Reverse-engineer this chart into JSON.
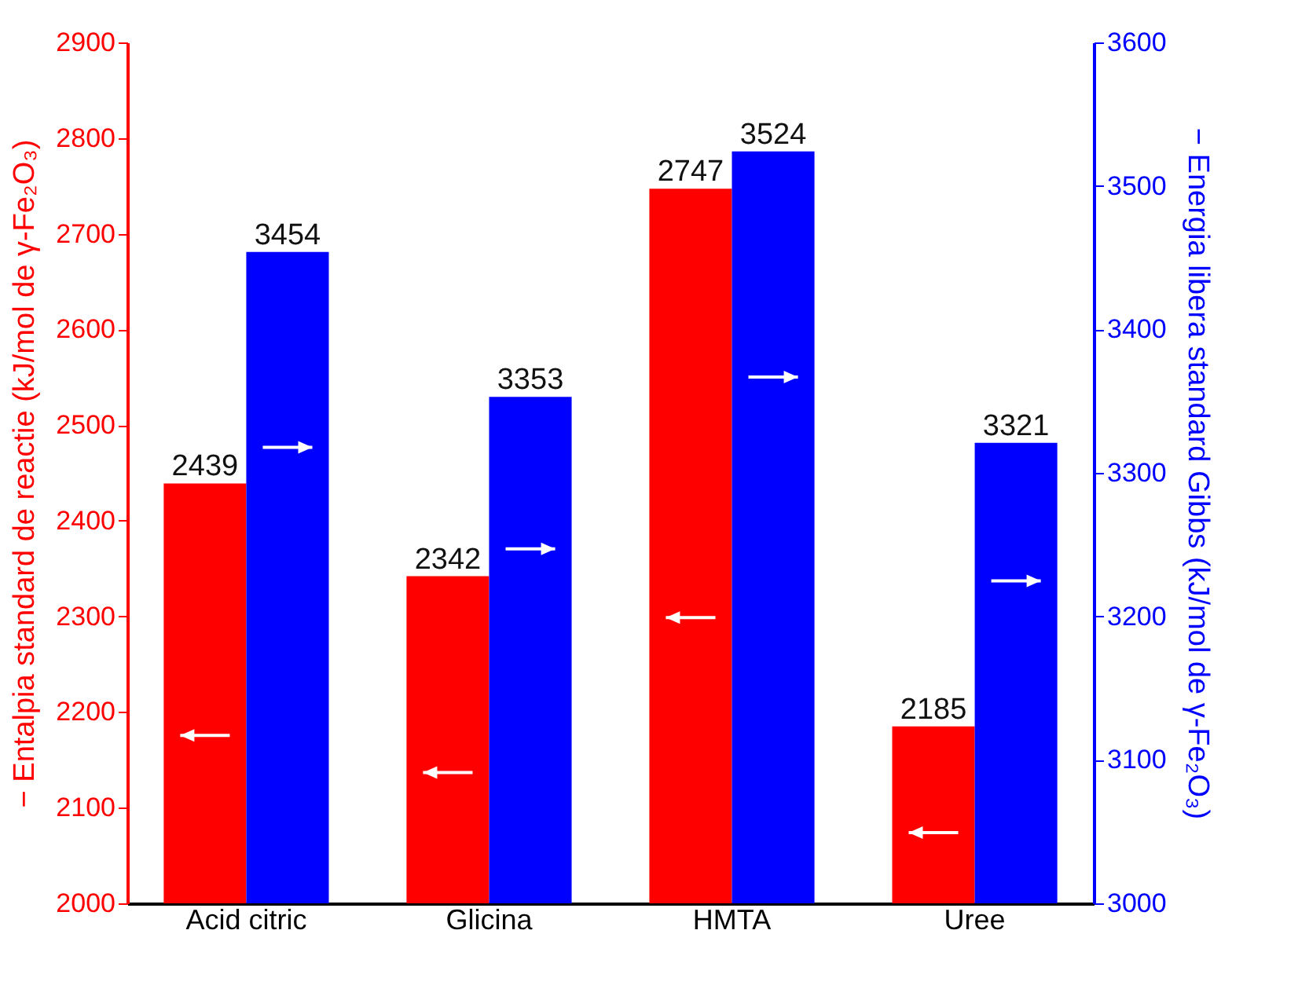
{
  "chart_data": {
    "type": "bar",
    "ylabel": "− Entalpia standard de reactie (kJ/mol de γ-Fe₂O₃)",
    "y2label": "− Energia libera standard Gibbs (kJ/mol de γ-Fe₂O₃)",
    "categories": [
      "Acid citric",
      "Glicina",
      "HMTA",
      "Uree"
    ],
    "series": [
      {
        "color": "#ff0000",
        "values": [
          2439,
          2342,
          2747,
          2185
        ],
        "axis": "y"
      },
      {
        "color": "#0000ff",
        "values": [
          3454,
          3353,
          3524,
          3321
        ],
        "axis": "y2"
      }
    ],
    "ylim": [
      2000,
      2900
    ],
    "yticks": [
      2000,
      2100,
      2200,
      2300,
      2400,
      2500,
      2600,
      2700,
      2800,
      2900
    ],
    "y2lim": [
      3000,
      3600
    ],
    "y2ticks": [
      3000,
      3100,
      3200,
      3300,
      3400,
      3500,
      3600
    ],
    "data_labels": true
  }
}
